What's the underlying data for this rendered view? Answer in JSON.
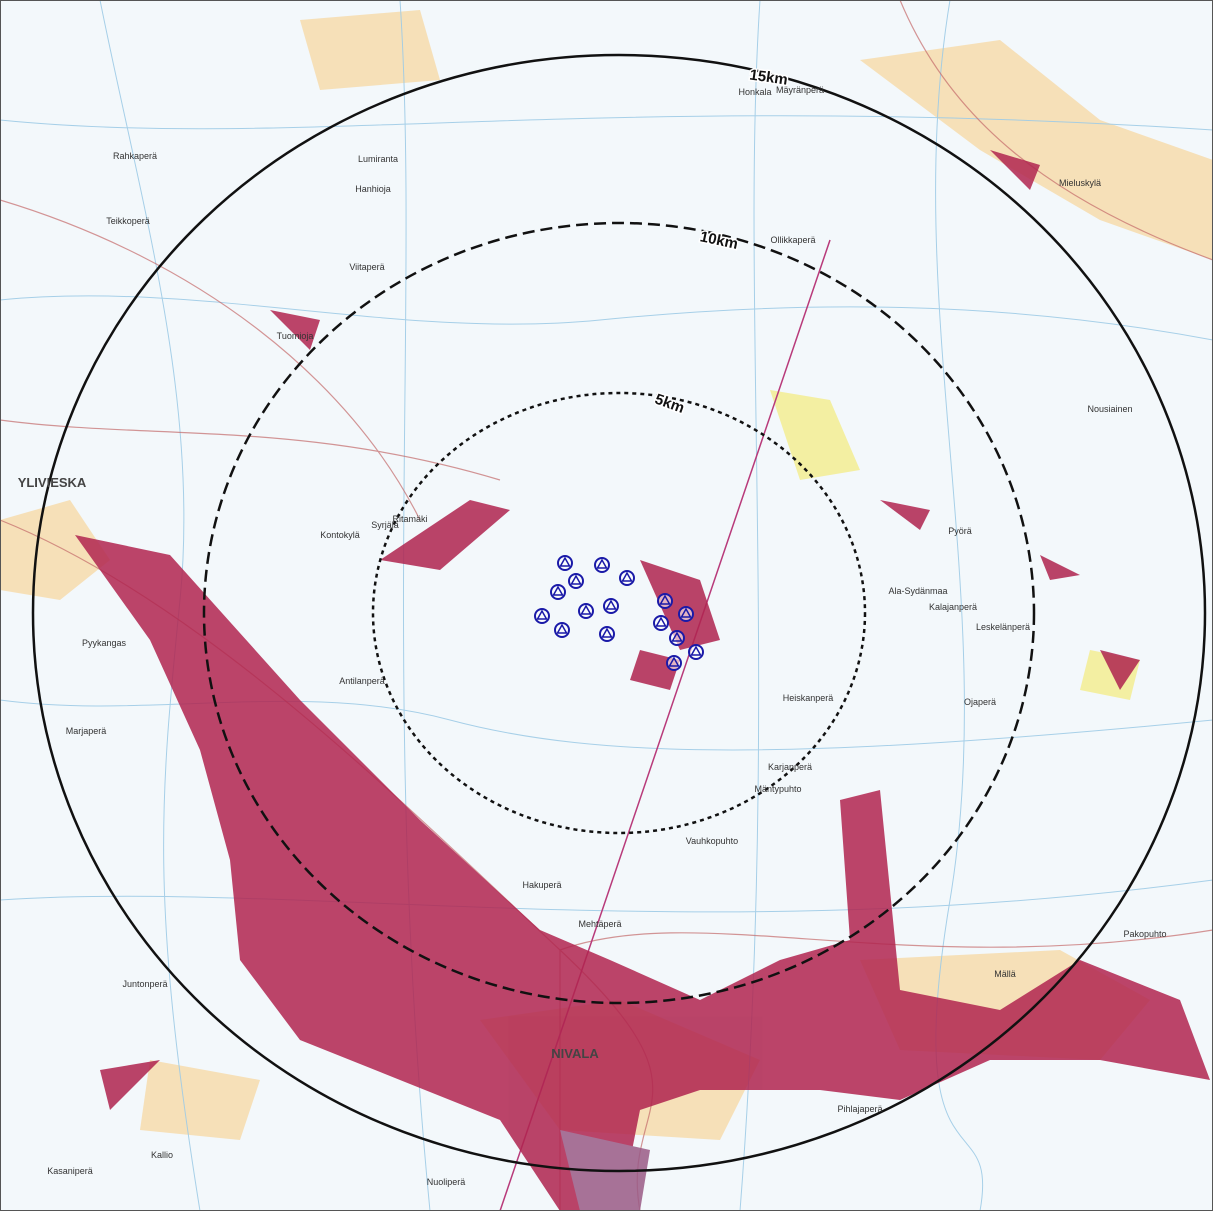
{
  "map": {
    "rings": [
      "5km",
      "10km",
      "15km"
    ],
    "places": [
      "YLIVIESKA",
      "NIVALA",
      "Kontokylä",
      "Ala-Sydänmaa",
      "Kalajanperä",
      "Mieluskylä",
      "Honkala",
      "Mäyränperä",
      "Ollikkaperä",
      "Heiskanperä",
      "Mehtäperä",
      "Hakuperä",
      "Pyörä",
      "Leskelänperä",
      "Ojaperä",
      "Tuomioja",
      "Viitaperä",
      "Hanhioja",
      "Lumiranta",
      "Rahkaperä",
      "Teikkoperä",
      "Pyykangas",
      "Marjaperä",
      "Juntonperä",
      "Kallio",
      "Kasaniperä",
      "Nuoliperä",
      "Pihlajaperä",
      "Pakopuhto",
      "Mällä",
      "Ritamäki",
      "Syrjälä",
      "Antilanperä",
      "Mäntypuhto",
      "Vauhkopuhto",
      "Nousiainen",
      "Karjanperä"
    ]
  }
}
